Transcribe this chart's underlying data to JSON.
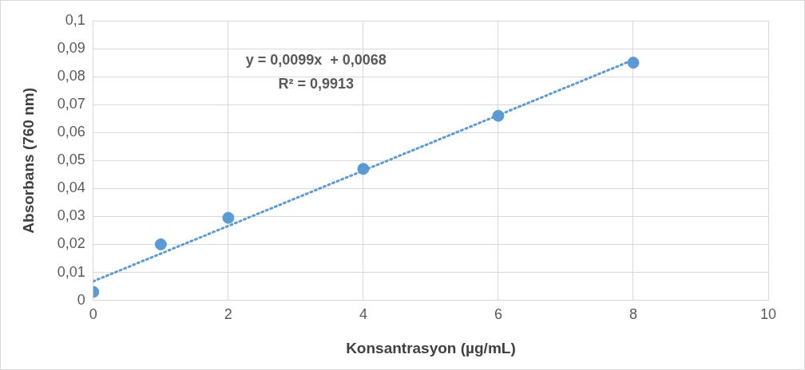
{
  "chart_data": {
    "type": "scatter",
    "xlabel": "Konsantrasyon (µg/mL)",
    "ylabel": "Absorbans (760 nm)",
    "xlim": [
      0,
      10
    ],
    "xticks": [
      0,
      2,
      4,
      6,
      8,
      10
    ],
    "ylim": [
      0,
      0.1
    ],
    "yticks": [
      {
        "value": 0,
        "label": "0"
      },
      {
        "value": 0.01,
        "label": "0,01"
      },
      {
        "value": 0.02,
        "label": "0,02"
      },
      {
        "value": 0.03,
        "label": "0,03"
      },
      {
        "value": 0.04,
        "label": "0,04"
      },
      {
        "value": 0.05,
        "label": "0,05"
      },
      {
        "value": 0.06,
        "label": "0,06"
      },
      {
        "value": 0.07,
        "label": "0,07"
      },
      {
        "value": 0.08,
        "label": "0,08"
      },
      {
        "value": 0.09,
        "label": "0,09"
      },
      {
        "value": 0.1,
        "label": "0,1"
      }
    ],
    "grid": true,
    "legend": false,
    "annotations": [
      "y = 0,0099x  + 0,0068",
      "R² = 0,9913"
    ],
    "series": [
      {
        "type": "scatter",
        "color": "#5b9bd5",
        "marker": "circle",
        "x": [
          0,
          1,
          2,
          4,
          6,
          8
        ],
        "values": [
          0.003,
          0.02,
          0.0295,
          0.047,
          0.066,
          0.085
        ]
      },
      {
        "type": "line",
        "color": "#5b9bd5",
        "marker": "none",
        "line_style": "dotted",
        "x": [
          0,
          8
        ],
        "values": [
          0.0068,
          0.086
        ]
      }
    ]
  }
}
